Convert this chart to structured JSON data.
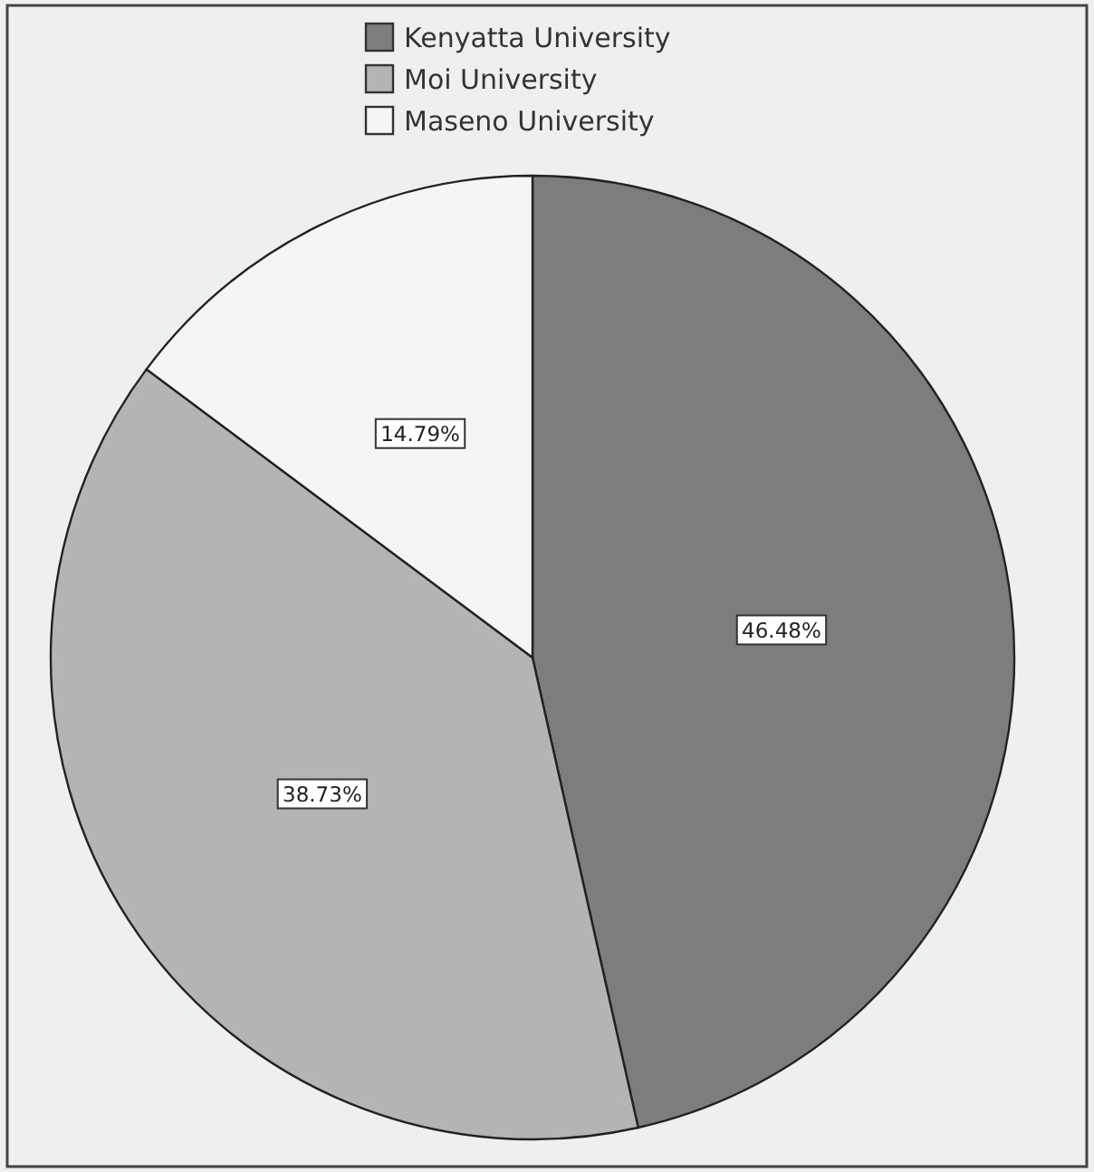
{
  "chart_data": {
    "type": "pie",
    "categories": [
      "Kenyatta University",
      "Moi University",
      "Maseno University"
    ],
    "values": [
      46.48,
      38.73,
      14.79
    ],
    "colors": [
      "#7d7d7d",
      "#b4b4b4",
      "#f5f5f5"
    ],
    "value_labels": [
      "46.48%",
      "38.73%",
      "14.79%"
    ],
    "legend": "top"
  }
}
